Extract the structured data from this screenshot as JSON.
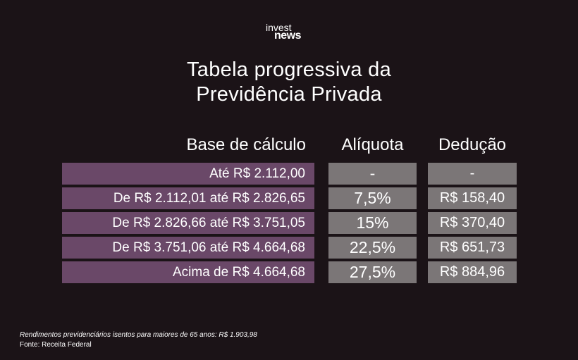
{
  "brand": {
    "line1": "invest",
    "line2": "news"
  },
  "title": {
    "line1": "Tabela progressiva da",
    "line2": "Previdência Privada"
  },
  "table": {
    "headers": {
      "base": "Base de cálculo",
      "aliquota": "Alíquota",
      "deducao": "Dedução"
    },
    "rows": [
      {
        "base": "Até R$ 2.112,00",
        "aliquota": "-",
        "deducao": "-"
      },
      {
        "base": "De R$ 2.112,01 até R$ 2.826,65",
        "aliquota": "7,5%",
        "deducao": "R$ 158,40"
      },
      {
        "base": "De R$ 2.826,66 até R$ 3.751,05",
        "aliquota": "15%",
        "deducao": "R$ 370,40"
      },
      {
        "base": "De R$ 3.751,06 até R$ 4.664,68",
        "aliquota": "22,5%",
        "deducao": "R$ 651,73"
      },
      {
        "base": "Acima de R$ 4.664,68",
        "aliquota": "27,5%",
        "deducao": "R$ 884,96"
      }
    ]
  },
  "footer": {
    "note": "Rendimentos previdenciários isentos para maiores de 65 anos: R$ 1.903,98",
    "source": "Fonte: Receita Federal"
  },
  "colors": {
    "background": "#1b1317",
    "base_cell": "#6a4868",
    "value_cell": "#7b7677",
    "text": "#ffffff"
  }
}
